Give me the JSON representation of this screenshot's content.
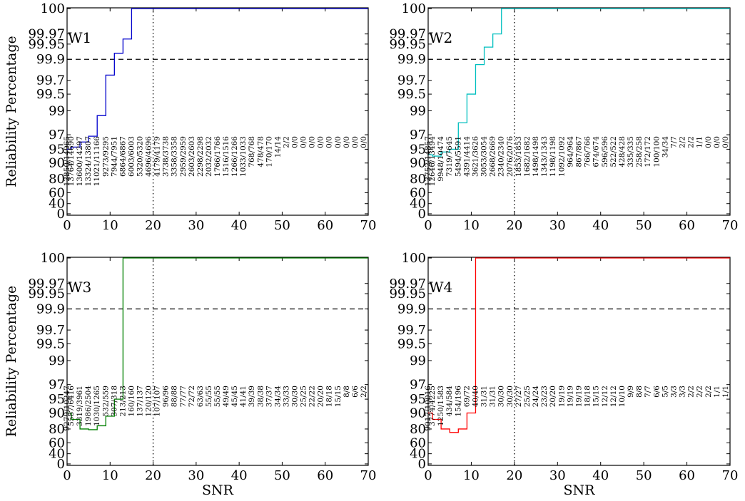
{
  "colors": {
    "W1": "#0000cc",
    "W2": "#00bfbf",
    "W3": "#008000",
    "W4": "#ff0000",
    "ref_line": "#000000",
    "axis": "#000000"
  },
  "chart_data": [
    {
      "type": "line",
      "step": true,
      "title": "W1",
      "xlabel": "",
      "ylabel": "Reliability Percentage",
      "xlim": [
        0,
        70
      ],
      "x_ticks": [
        "0",
        "10",
        "20",
        "30",
        "40",
        "50",
        "60",
        "70"
      ],
      "y_ticks": [
        "0",
        "40",
        "60",
        "80",
        "90",
        "95",
        "97",
        "99",
        "99.5",
        "99.7",
        "99.9",
        "99.95",
        "99.97",
        "100"
      ],
      "dashed_hline_y": 99.9,
      "dotted_vline_x": 20,
      "series": [
        {
          "color_key": "W1",
          "x": [
            0,
            1,
            3,
            5,
            7,
            9,
            11,
            13,
            15,
            70
          ],
          "y": [
            95,
            95.3,
            96,
            96.8,
            98.6,
            99.75,
            99.92,
            99.96,
            100,
            100
          ]
        }
      ],
      "annotation_x": [
        0,
        1,
        3,
        5,
        7,
        9,
        11,
        13,
        15,
        17,
        19,
        21,
        23,
        25,
        27,
        29,
        31,
        33,
        35,
        37,
        39,
        41,
        43,
        45,
        47,
        49,
        51,
        53,
        55,
        57,
        59,
        61,
        63,
        65,
        67,
        69
      ],
      "annotations": [
        "13850/14965",
        "13764/14690",
        "13600/14297",
        "13324/13807",
        "11021/11166",
        "9273/9295",
        "7944/7951",
        "6864/6867",
        "6003/6003",
        "5320/5320",
        "4696/4696",
        "4179/4179",
        "3738/3738",
        "3358/3358",
        "2959/2959",
        "2603/2603",
        "2298/2298",
        "2032/2032",
        "1766/1766",
        "1516/1516",
        "1266/1266",
        "1033/1033",
        "768/768",
        "478/478",
        "170/170",
        "14/14",
        "2/2",
        "0/0",
        "0/0",
        "0/0",
        "0/0",
        "0/0",
        "0/0",
        "0/0",
        "0/0",
        "0/0"
      ]
    },
    {
      "type": "line",
      "step": true,
      "title": "W2",
      "xlabel": "",
      "ylabel": "",
      "xlim": [
        0,
        70
      ],
      "x_ticks": [
        "0",
        "10",
        "20",
        "30",
        "40",
        "50",
        "60",
        "70"
      ],
      "y_ticks": [
        "0",
        "40",
        "60",
        "80",
        "90",
        "95",
        "97",
        "99",
        "99.5",
        "99.7",
        "99.9",
        "99.95",
        "99.97",
        "100"
      ],
      "dashed_hline_y": 99.9,
      "dotted_vline_x": 20,
      "series": [
        {
          "color_key": "W2",
          "x": [
            0,
            1,
            3,
            5,
            7,
            9,
            11,
            13,
            15,
            17,
            70
          ],
          "y": [
            93,
            92.5,
            94,
            95,
            98,
            99.5,
            99.85,
            99.94,
            99.97,
            100,
            100
          ]
        }
      ],
      "annotation_x": [
        0,
        1,
        3,
        5,
        7,
        9,
        11,
        13,
        15,
        17,
        19,
        21,
        23,
        25,
        27,
        29,
        31,
        33,
        35,
        37,
        39,
        41,
        43,
        45,
        47,
        49,
        51,
        53,
        55,
        57,
        59,
        61,
        63,
        65,
        67,
        69
      ],
      "annotations": [
        "13752/14857",
        "12646/13494",
        "9948/10474",
        "7319/7645",
        "5494/5591",
        "4391/4414",
        "3621/3626",
        "3053/3054",
        "2668/2669",
        "2340/2340",
        "2076/2076",
        "1853/1853",
        "1682/1682",
        "1498/1498",
        "1343/1343",
        "1198/1198",
        "1092/1092",
        "964/964",
        "867/867",
        "766/766",
        "674/674",
        "596/596",
        "522/522",
        "428/428",
        "335/335",
        "258/258",
        "172/172",
        "100/100",
        "34/34",
        "7/7",
        "2/2",
        "2/2",
        "1/1",
        "0/0",
        "0/0",
        "0/0"
      ]
    },
    {
      "type": "line",
      "step": true,
      "title": "W3",
      "xlabel": "SNR",
      "ylabel": "Reliability Percentage",
      "xlim": [
        0,
        70
      ],
      "x_ticks": [
        "0",
        "10",
        "20",
        "30",
        "40",
        "50",
        "60",
        "70"
      ],
      "y_ticks": [
        "0",
        "40",
        "60",
        "80",
        "90",
        "95",
        "97",
        "99",
        "99.5",
        "99.7",
        "99.9",
        "99.95",
        "99.97",
        "100"
      ],
      "dashed_hline_y": 99.9,
      "dotted_vline_x": 20,
      "series": [
        {
          "color_key": "W3",
          "x": [
            0,
            1,
            3,
            5,
            7,
            9,
            11,
            13,
            70
          ],
          "y": [
            90,
            86,
            80,
            79,
            82,
            88,
            95,
            100,
            100
          ]
        }
      ],
      "annotation_x": [
        0,
        1,
        3,
        5,
        7,
        9,
        11,
        13,
        15,
        17,
        19,
        21,
        23,
        25,
        27,
        29,
        31,
        33,
        35,
        37,
        39,
        41,
        43,
        45,
        47,
        49,
        51,
        53,
        55,
        57,
        59,
        61,
        63,
        65,
        67,
        69
      ],
      "annotations": [
        "9279/10247",
        "5587/6416",
        "3319/3961",
        "1986/2504",
        "1030/1265",
        "532/559",
        "307/318",
        "213/213",
        "160/160",
        "137/137",
        "120/120",
        "107/107",
        "96/96",
        "88/88",
        "77/77",
        "72/72",
        "63/63",
        "55/55",
        "55/55",
        "49/49",
        "45/45",
        "41/41",
        "39/39",
        "38/38",
        "37/37",
        "34/34",
        "33/33",
        "30/30",
        "25/25",
        "22/22",
        "20/20",
        "18/18",
        "15/15",
        "8/8",
        "6/6",
        "2/2"
      ]
    },
    {
      "type": "line",
      "step": true,
      "title": "W4",
      "xlabel": "SNR",
      "ylabel": "",
      "xlim": [
        0,
        70
      ],
      "x_ticks": [
        "0",
        "10",
        "20",
        "30",
        "40",
        "50",
        "60",
        "70"
      ],
      "y_ticks": [
        "0",
        "40",
        "60",
        "80",
        "90",
        "95",
        "97",
        "99",
        "99.5",
        "99.7",
        "99.9",
        "99.95",
        "99.97",
        "100"
      ],
      "dashed_hline_y": 99.9,
      "dotted_vline_x": 20,
      "series": [
        {
          "color_key": "W4",
          "x": [
            0,
            1,
            3,
            5,
            7,
            9,
            11,
            70
          ],
          "y": [
            90,
            86,
            80,
            75,
            80,
            90,
            100,
            100
          ]
        }
      ],
      "annotation_x": [
        0,
        1,
        3,
        5,
        7,
        9,
        11,
        13,
        15,
        17,
        19,
        21,
        23,
        25,
        27,
        29,
        31,
        33,
        35,
        37,
        39,
        41,
        43,
        45,
        47,
        49,
        51,
        53,
        55,
        57,
        59,
        61,
        63,
        65,
        67,
        69
      ],
      "annotations": [
        "9017/10016",
        "3774/4225",
        "1250/1583",
        "434/584",
        "154/196",
        "69/72",
        "40/40",
        "31/31",
        "31/31",
        "30/30",
        "30/30",
        "27/27",
        "25/25",
        "24/24",
        "23/23",
        "20/20",
        "19/19",
        "19/19",
        "19/19",
        "18/18",
        "15/15",
        "12/12",
        "12/12",
        "10/10",
        "9/9",
        "8/8",
        "7/7",
        "6/6",
        "5/5",
        "3/3",
        "3/3",
        "2/2",
        "2/2",
        "2/2",
        "1/1",
        "1/1"
      ]
    }
  ]
}
